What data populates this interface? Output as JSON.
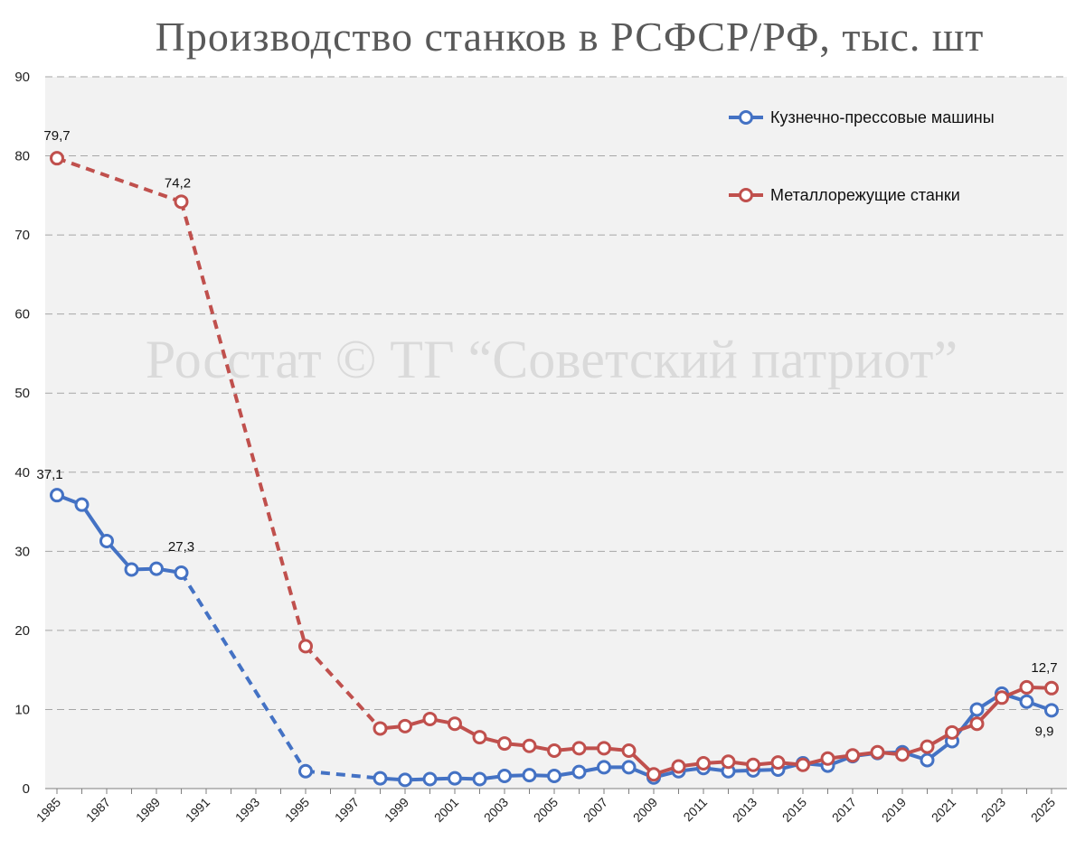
{
  "chart_data": {
    "type": "line",
    "title": "Производство станков в РСФСР/РФ, тыс. шт",
    "watermark": "Росстат © ТГ “Советский патриот”",
    "xlabel": "",
    "ylabel": "",
    "ylim": [
      0,
      90
    ],
    "yticks": [
      0,
      10,
      20,
      30,
      40,
      50,
      60,
      70,
      80,
      90
    ],
    "xlim": [
      1985,
      2025
    ],
    "xticks": [
      1985,
      1987,
      1989,
      1991,
      1993,
      1995,
      1997,
      1999,
      2001,
      2003,
      2005,
      2007,
      2009,
      2011,
      2013,
      2015,
      2017,
      2019,
      2021,
      2023,
      2025
    ],
    "grid": "horizontal-dashed",
    "legend_position": "top-right",
    "series": [
      {
        "name": "Кузнечно-прессовые машины",
        "color": "#4472c4",
        "points": [
          [
            1985,
            37.1
          ],
          [
            1986,
            35.9
          ],
          [
            1987,
            31.3
          ],
          [
            1988,
            27.7
          ],
          [
            1989,
            27.8
          ],
          [
            1990,
            27.3
          ],
          [
            1995,
            2.2
          ],
          [
            1998,
            1.3
          ],
          [
            1999,
            1.1
          ],
          [
            2000,
            1.2
          ],
          [
            2001,
            1.3
          ],
          [
            2002,
            1.2
          ],
          [
            2003,
            1.6
          ],
          [
            2004,
            1.7
          ],
          [
            2005,
            1.6
          ],
          [
            2006,
            2.1
          ],
          [
            2007,
            2.7
          ],
          [
            2008,
            2.7
          ],
          [
            2009,
            1.4
          ],
          [
            2010,
            2.2
          ],
          [
            2011,
            2.6
          ],
          [
            2012,
            2.2
          ],
          [
            2013,
            2.3
          ],
          [
            2014,
            2.4
          ],
          [
            2015,
            3.2
          ],
          [
            2016,
            2.9
          ],
          [
            2017,
            4.1
          ],
          [
            2018,
            4.5
          ],
          [
            2019,
            4.6
          ],
          [
            2020,
            3.6
          ],
          [
            2021,
            6.0
          ],
          [
            2022,
            10.0
          ],
          [
            2023,
            12.0
          ],
          [
            2024,
            11.0
          ],
          [
            2025,
            9.9
          ]
        ],
        "labels": [
          {
            "x": 1985,
            "text": "37,1"
          },
          {
            "x": 1990,
            "text": "27,3"
          },
          {
            "x": 2025,
            "text": "9,9"
          }
        ]
      },
      {
        "name": "Металлорежущие станки",
        "color": "#c0504d",
        "points": [
          [
            1985,
            79.7
          ],
          [
            1990,
            74.2
          ],
          [
            1995,
            18.0
          ],
          [
            1998,
            7.6
          ],
          [
            1999,
            7.9
          ],
          [
            2000,
            8.8
          ],
          [
            2001,
            8.2
          ],
          [
            2002,
            6.5
          ],
          [
            2003,
            5.7
          ],
          [
            2004,
            5.4
          ],
          [
            2005,
            4.8
          ],
          [
            2006,
            5.1
          ],
          [
            2007,
            5.1
          ],
          [
            2008,
            4.8
          ],
          [
            2009,
            1.8
          ],
          [
            2010,
            2.8
          ],
          [
            2011,
            3.2
          ],
          [
            2012,
            3.4
          ],
          [
            2013,
            3.0
          ],
          [
            2014,
            3.3
          ],
          [
            2015,
            3.0
          ],
          [
            2016,
            3.8
          ],
          [
            2017,
            4.2
          ],
          [
            2018,
            4.6
          ],
          [
            2019,
            4.3
          ],
          [
            2020,
            5.3
          ],
          [
            2021,
            7.1
          ],
          [
            2022,
            8.2
          ],
          [
            2023,
            11.5
          ],
          [
            2024,
            12.8
          ],
          [
            2025,
            12.7
          ]
        ],
        "labels": [
          {
            "x": 1985,
            "text": "79,7"
          },
          {
            "x": 1990,
            "text": "74,2"
          },
          {
            "x": 2025,
            "text": "12,7"
          }
        ]
      }
    ]
  }
}
